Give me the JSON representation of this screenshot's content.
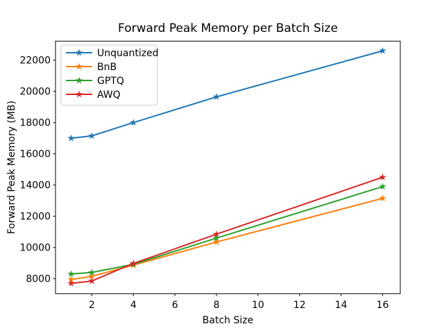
{
  "figure": {
    "background_color": "#ffffff"
  },
  "chart_data": {
    "type": "line",
    "title": "Forward Peak Memory per Batch Size",
    "xlabel": "Batch Size",
    "ylabel": "Forward Peak Memory (MB)",
    "x": [
      1,
      2,
      4,
      8,
      16
    ],
    "series": [
      {
        "name": "Unquantized",
        "color": "#1f77b4",
        "values": [
          17000,
          17150,
          18000,
          19650,
          22600
        ]
      },
      {
        "name": "BnB",
        "color": "#ff7f0e",
        "values": [
          7950,
          8150,
          8870,
          10350,
          13150
        ]
      },
      {
        "name": "GPTQ",
        "color": "#2ca02c",
        "values": [
          8300,
          8400,
          8920,
          10600,
          13900
        ]
      },
      {
        "name": "AWQ",
        "color": "#d62728",
        "values": [
          7700,
          7850,
          8980,
          10850,
          14500
        ]
      }
    ],
    "xticks": [
      2,
      4,
      6,
      8,
      10,
      12,
      14,
      16
    ],
    "yticks": [
      8000,
      10000,
      12000,
      14000,
      16000,
      18000,
      20000,
      22000
    ],
    "xlim": [
      0.25,
      16.85
    ],
    "ylim": [
      7040,
      23220
    ],
    "grid": false,
    "marker": "star",
    "legend_position": "upper left",
    "axis_color": "#000000",
    "legend_border_color": "#cccccc",
    "legend_background_color": "#ffffff"
  }
}
